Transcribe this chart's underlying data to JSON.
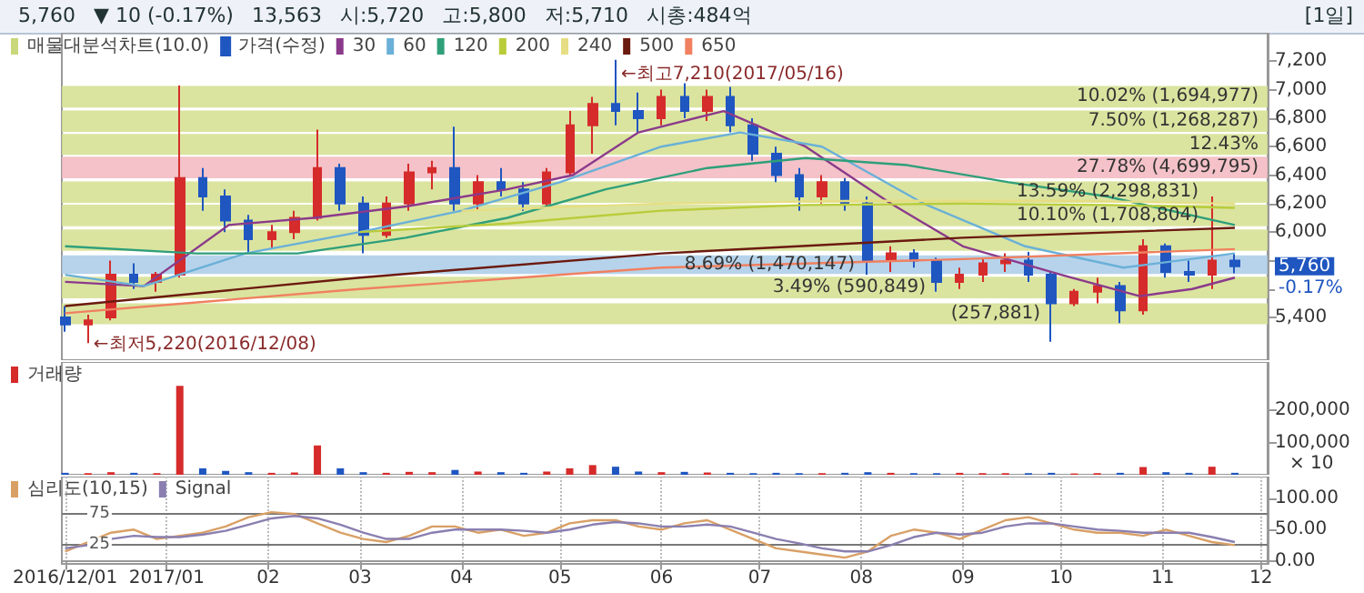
{
  "chart_data": [
    {
      "type": "candlestick",
      "legend_title": "매물대분석차트(10.0)",
      "legend": "top left",
      "tick_labels": "y",
      "annotations": [
        "5,760",
        "▼ 10 (-0.17%)",
        "13,563",
        "시:5,720",
        "고:5,800",
        "저:5,710",
        "시총:484억",
        "[1일]",
        {
          "text": "←최고7,210(2017/05/16)",
          "x": "2017-05-18",
          "y": 7210
        },
        {
          "text": "←최저5,220(2016/12/08)",
          "x": "2016-12-08",
          "y": 5220
        },
        {
          "text": "5,760",
          "x": "2017-11-23",
          "y": 5760
        },
        {
          "text": "-0.17%",
          "x": "2017-11-23",
          "y": 5760
        }
      ],
      "x": [
        "2016-12-01",
        "2016-12-08",
        "2016-12-15",
        "2016-12-22",
        "2016-12-29",
        "2017-01-05",
        "2017-01-12",
        "2017-01-19",
        "2017-01-26",
        "2017-02-02",
        "2017-02-09",
        "2017-02-16",
        "2017-02-23",
        "2017-03-02",
        "2017-03-09",
        "2017-03-16",
        "2017-03-23",
        "2017-03-30",
        "2017-04-06",
        "2017-04-13",
        "2017-04-20",
        "2017-04-27",
        "2017-05-04",
        "2017-05-11",
        "2017-05-18",
        "2017-05-25",
        "2017-06-01",
        "2017-06-08",
        "2017-06-15",
        "2017-06-22",
        "2017-06-29",
        "2017-07-06",
        "2017-07-13",
        "2017-07-20",
        "2017-07-27",
        "2017-08-03",
        "2017-08-10",
        "2017-08-17",
        "2017-08-24",
        "2017-08-31",
        "2017-09-07",
        "2017-09-14",
        "2017-09-21",
        "2017-09-28",
        "2017-10-05",
        "2017-10-12",
        "2017-10-19",
        "2017-10-26",
        "2017-11-02",
        "2017-11-09",
        "2017-11-16",
        "2017-11-23"
      ],
      "xlim": [
        "2016-11-30",
        "2017-12-03"
      ],
      "xticks": [
        {
          "value": "2016-12-01",
          "label": null
        },
        {
          "value": "2017-01-01",
          "label": null
        },
        {
          "value": "2017-02-01",
          "label": null
        },
        {
          "value": "2017-03-01",
          "label": null
        },
        {
          "value": "2017-04-01",
          "label": null
        },
        {
          "value": "2017-05-01",
          "label": null
        },
        {
          "value": "2017-06-01",
          "label": null
        },
        {
          "value": "2017-07-01",
          "label": null
        },
        {
          "value": "2017-08-01",
          "label": null
        },
        {
          "value": "2017-09-01",
          "label": null
        },
        {
          "value": "2017-10-01",
          "label": null
        },
        {
          "value": "2017-11-01",
          "label": null
        },
        {
          "value": "2017-12-01",
          "label": null
        }
      ],
      "ylim": [
        5100,
        7400
      ],
      "yticks": [
        {
          "value": 5400,
          "label": "5,400"
        },
        {
          "value": 5600,
          "label": null
        },
        {
          "value": 5800,
          "label": null
        },
        {
          "value": 6000,
          "label": "6,000"
        },
        {
          "value": 6200,
          "label": "6,200"
        },
        {
          "value": 6400,
          "label": "6,400"
        },
        {
          "value": 6600,
          "label": "6,600"
        },
        {
          "value": 6800,
          "label": "6,800"
        },
        {
          "value": 7000,
          "label": "7,000"
        },
        {
          "value": 7200,
          "label": "7,200"
        }
      ],
      "bands": [
        {
          "axis": "y",
          "from": 6875,
          "to": 7027,
          "label": "10.02% (1,694,977)",
          "color": "#d3df8e"
        },
        {
          "axis": "y",
          "from": 6703,
          "to": 6854,
          "label": "7.50% (1,268,287)",
          "color": "#d3df8e"
        },
        {
          "axis": "y",
          "from": 6543,
          "to": 6690,
          "label": "12.43%",
          "color": "#d3df8e"
        },
        {
          "axis": "y",
          "from": 6378,
          "to": 6530,
          "label": "27.78% (4,699,795)",
          "color": "#f2b7be"
        },
        {
          "axis": "y",
          "from": 6205,
          "to": 6356,
          "label": "13.59% (2,298,831)",
          "color": "#d3df8e"
        },
        {
          "axis": "y",
          "from": 6040,
          "to": 6192,
          "label": "10.10% (1,708,804)",
          "color": "#d3df8e"
        },
        {
          "axis": "y",
          "from": 5868,
          "to": 6018,
          "label": null,
          "color": "#d3df8e"
        },
        {
          "axis": "y",
          "from": 5706,
          "to": 5836,
          "label": "8.69% (1,470,147)",
          "color": "#a9cbe8"
        },
        {
          "axis": "y",
          "from": 5534,
          "to": 5686,
          "label": "3.49% (590,849)",
          "color": "#d3df8e"
        },
        {
          "axis": "y",
          "from": 5353,
          "to": 5499,
          "label": "(257,881)",
          "color": "#d3df8e"
        }
      ],
      "series": [
        {
          "name": "가격(수정)",
          "type": "candlestick",
          "colors": [
            "#1f56c0",
            "#d52b2b",
            "#d52b2b",
            "#1f56c0",
            "#d52b2b",
            "#d52b2b",
            "#1f56c0",
            "#1f56c0",
            "#1f56c0",
            "#d52b2b",
            "#d52b2b",
            "#d52b2b",
            "#1f56c0",
            "#1f56c0",
            "#d52b2b",
            "#d52b2b",
            "#d52b2b",
            "#1f56c0",
            "#d52b2b",
            "#1f56c0",
            "#1f56c0",
            "#d52b2b",
            "#d52b2b",
            "#d52b2b",
            "#1f56c0",
            "#1f56c0",
            "#d52b2b",
            "#1f56c0",
            "#d52b2b",
            "#1f56c0",
            "#1f56c0",
            "#1f56c0",
            "#1f56c0",
            "#d52b2b",
            "#1f56c0",
            "#1f56c0",
            "#d52b2b",
            "#1f56c0",
            "#1f56c0",
            "#d52b2b",
            "#d52b2b",
            "#d52b2b",
            "#1f56c0",
            "#1f56c0",
            "#d52b2b",
            "#d52b2b",
            "#1f56c0",
            "#d52b2b",
            "#1f56c0",
            "#1f56c0",
            "#d52b2b",
            "#1f56c0"
          ],
          "ohlc": [
            [
              5400,
              5480,
              5300,
              5350
            ],
            [
              5350,
              5420,
              5220,
              5380
            ],
            [
              5400,
              5800,
              5380,
              5700
            ],
            [
              5700,
              5780,
              5600,
              5650
            ],
            [
              5650,
              5720,
              5580,
              5700
            ],
            [
              5700,
              7030,
              5680,
              6380
            ],
            [
              6380,
              6450,
              6150,
              6250
            ],
            [
              6250,
              6300,
              6000,
              6080
            ],
            [
              6080,
              6120,
              5850,
              5950
            ],
            [
              5950,
              6050,
              5880,
              6000
            ],
            [
              6000,
              6150,
              5950,
              6100
            ],
            [
              6100,
              6720,
              6080,
              6450
            ],
            [
              6450,
              6480,
              6150,
              6200
            ],
            [
              6200,
              6250,
              5850,
              5980
            ],
            [
              5980,
              6250,
              5960,
              6200
            ],
            [
              6200,
              6480,
              6150,
              6420
            ],
            [
              6420,
              6500,
              6300,
              6450
            ],
            [
              6450,
              6740,
              6150,
              6200
            ],
            [
              6200,
              6400,
              6150,
              6350
            ],
            [
              6350,
              6450,
              6250,
              6300
            ],
            [
              6300,
              6350,
              6150,
              6200
            ],
            [
              6200,
              6450,
              6180,
              6420
            ],
            [
              6420,
              6850,
              6400,
              6750
            ],
            [
              6750,
              6950,
              6550,
              6900
            ],
            [
              6900,
              7210,
              6750,
              6850
            ],
            [
              6850,
              6980,
              6700,
              6800
            ],
            [
              6800,
              7000,
              6750,
              6950
            ],
            [
              6950,
              7050,
              6800,
              6850
            ],
            [
              6850,
              7000,
              6780,
              6950
            ],
            [
              6950,
              7020,
              6700,
              6750
            ],
            [
              6750,
              6800,
              6500,
              6550
            ],
            [
              6550,
              6600,
              6350,
              6400
            ],
            [
              6400,
              6450,
              6150,
              6250
            ],
            [
              6250,
              6400,
              6200,
              6350
            ],
            [
              6350,
              6380,
              6150,
              6200
            ],
            [
              6200,
              6250,
              5700,
              5800
            ],
            [
              5800,
              5900,
              5720,
              5850
            ],
            [
              5850,
              5880,
              5750,
              5800
            ],
            [
              5800,
              5820,
              5580,
              5650
            ],
            [
              5650,
              5750,
              5600,
              5700
            ],
            [
              5700,
              5820,
              5650,
              5780
            ],
            [
              5780,
              5850,
              5720,
              5800
            ],
            [
              5800,
              5860,
              5650,
              5700
            ],
            [
              5700,
              5720,
              5230,
              5500
            ],
            [
              5500,
              5600,
              5480,
              5580
            ],
            [
              5580,
              5680,
              5500,
              5620
            ],
            [
              5620,
              5650,
              5360,
              5450
            ],
            [
              5450,
              5950,
              5420,
              5900
            ],
            [
              5900,
              5920,
              5680,
              5720
            ],
            [
              5720,
              5800,
              5650,
              5700
            ],
            [
              5700,
              6250,
              5600,
              5800
            ],
            [
              5800,
              5850,
              5710,
              5760
            ]
          ]
        },
        {
          "name": "30",
          "type": "line",
          "color": "#8b3a8b",
          "x": [
            "2016-12-01",
            "2016-12-25",
            "2017-01-20",
            "2017-02-15",
            "2017-03-15",
            "2017-04-15",
            "2017-05-05",
            "2017-05-25",
            "2017-06-20",
            "2017-07-15",
            "2017-08-10",
            "2017-09-01",
            "2017-10-01",
            "2017-10-25",
            "2017-11-10",
            "2017-11-23"
          ],
          "values": [
            5650,
            5620,
            6050,
            6100,
            6180,
            6300,
            6400,
            6700,
            6850,
            6600,
            6200,
            5900,
            5700,
            5550,
            5600,
            5680
          ]
        },
        {
          "name": "60",
          "type": "line",
          "color": "#6ab0d8",
          "x": [
            "2016-12-01",
            "2016-12-25",
            "2017-01-25",
            "2017-03-01",
            "2017-04-01",
            "2017-05-01",
            "2017-06-01",
            "2017-06-25",
            "2017-07-20",
            "2017-08-20",
            "2017-09-20",
            "2017-10-20",
            "2017-11-23"
          ],
          "values": [
            5700,
            5620,
            5850,
            6000,
            6150,
            6350,
            6600,
            6700,
            6600,
            6200,
            5900,
            5750,
            5850
          ]
        },
        {
          "name": "120",
          "type": "line",
          "color": "#2f9f7a",
          "x": [
            "2016-12-01",
            "2017-01-10",
            "2017-02-10",
            "2017-03-15",
            "2017-04-15",
            "2017-05-15",
            "2017-06-15",
            "2017-07-15",
            "2017-08-15",
            "2017-09-15",
            "2017-10-15",
            "2017-11-23"
          ],
          "values": [
            5900,
            5850,
            5850,
            5960,
            6100,
            6300,
            6450,
            6520,
            6470,
            6350,
            6250,
            6050
          ]
        },
        {
          "name": "200",
          "type": "line",
          "color": "#b9cc3a",
          "x": [
            "2017-03-01",
            "2017-04-15",
            "2017-06-01",
            "2017-07-15",
            "2017-09-01",
            "2017-10-15",
            "2017-11-23"
          ],
          "values": [
            6000,
            6060,
            6150,
            6190,
            6200,
            6190,
            6170
          ]
        },
        {
          "name": "240",
          "type": "line",
          "color": "#e6de84",
          "x": [
            "2017-04-01",
            "2017-06-01",
            "2017-08-01",
            "2017-10-01",
            "2017-11-23"
          ],
          "values": [
            6150,
            6200,
            6220,
            6220,
            6200
          ]
        },
        {
          "name": "500",
          "type": "line",
          "color": "#6b1a0f",
          "x": [
            "2016-12-01",
            "2017-03-01",
            "2017-06-01",
            "2017-09-01",
            "2017-11-23"
          ],
          "values": [
            5480,
            5680,
            5850,
            5960,
            6030
          ]
        },
        {
          "name": "650",
          "type": "line",
          "color": "#f08060",
          "x": [
            "2016-12-01",
            "2017-03-01",
            "2017-06-01",
            "2017-09-01",
            "2017-11-23"
          ],
          "values": [
            5430,
            5600,
            5750,
            5810,
            5880
          ]
        }
      ]
    },
    {
      "type": "bar",
      "legend": "top left",
      "tick_labels": "y",
      "x": [
        "2016-12-01",
        "2016-12-08",
        "2016-12-15",
        "2016-12-22",
        "2016-12-29",
        "2017-01-05",
        "2017-01-12",
        "2017-01-19",
        "2017-01-26",
        "2017-02-02",
        "2017-02-09",
        "2017-02-16",
        "2017-02-23",
        "2017-03-02",
        "2017-03-09",
        "2017-03-16",
        "2017-03-23",
        "2017-03-30",
        "2017-04-06",
        "2017-04-13",
        "2017-04-20",
        "2017-04-27",
        "2017-05-04",
        "2017-05-11",
        "2017-05-18",
        "2017-05-25",
        "2017-06-01",
        "2017-06-08",
        "2017-06-15",
        "2017-06-22",
        "2017-06-29",
        "2017-07-06",
        "2017-07-13",
        "2017-07-20",
        "2017-07-27",
        "2017-08-03",
        "2017-08-10",
        "2017-08-17",
        "2017-08-24",
        "2017-08-31",
        "2017-09-07",
        "2017-09-14",
        "2017-09-21",
        "2017-09-28",
        "2017-10-05",
        "2017-10-12",
        "2017-10-19",
        "2017-10-26",
        "2017-11-02",
        "2017-11-09",
        "2017-11-16",
        "2017-11-23"
      ],
      "xlim": [
        "2016-11-30",
        "2017-12-03"
      ],
      "xticks": [
        {
          "value": "2016-12-01",
          "label": null
        },
        {
          "value": "2017-01-01",
          "label": null
        },
        {
          "value": "2017-02-01",
          "label": null
        },
        {
          "value": "2017-03-01",
          "label": null
        },
        {
          "value": "2017-04-01",
          "label": null
        },
        {
          "value": "2017-05-01",
          "label": null
        },
        {
          "value": "2017-06-01",
          "label": null
        },
        {
          "value": "2017-07-01",
          "label": null
        },
        {
          "value": "2017-08-01",
          "label": null
        },
        {
          "value": "2017-09-01",
          "label": null
        },
        {
          "value": "2017-10-01",
          "label": null
        },
        {
          "value": "2017-11-01",
          "label": null
        },
        {
          "value": "2017-12-01",
          "label": null
        }
      ],
      "ylim": [
        0,
        350000
      ],
      "ylabel": "× 10",
      "yticks": [
        {
          "value": 100000,
          "label": "100,000"
        },
        {
          "value": 200000,
          "label": "200,000"
        }
      ],
      "series": [
        {
          "name": "거래량",
          "color": "#d52b2b",
          "values": [
            6000,
            5000,
            8000,
            6000,
            5000,
            276000,
            20000,
            12000,
            8000,
            6000,
            7000,
            91000,
            20000,
            8000,
            6000,
            9000,
            8000,
            15000,
            10000,
            8000,
            6000,
            10000,
            20000,
            30000,
            25000,
            10000,
            8000,
            9000,
            7000,
            6000,
            5000,
            6000,
            5000,
            5000,
            6000,
            8000,
            6000,
            5000,
            5000,
            6000,
            5000,
            5000,
            5000,
            6000,
            4000,
            5000,
            6000,
            24000,
            8000,
            6000,
            25000,
            6000
          ],
          "colors": [
            "#1f56c0",
            "#d52b2b",
            "#d52b2b",
            "#1f56c0",
            "#d52b2b",
            "#d52b2b",
            "#1f56c0",
            "#1f56c0",
            "#1f56c0",
            "#d52b2b",
            "#d52b2b",
            "#d52b2b",
            "#1f56c0",
            "#1f56c0",
            "#d52b2b",
            "#d52b2b",
            "#d52b2b",
            "#1f56c0",
            "#d52b2b",
            "#1f56c0",
            "#1f56c0",
            "#d52b2b",
            "#d52b2b",
            "#d52b2b",
            "#1f56c0",
            "#1f56c0",
            "#d52b2b",
            "#1f56c0",
            "#d52b2b",
            "#1f56c0",
            "#1f56c0",
            "#1f56c0",
            "#1f56c0",
            "#d52b2b",
            "#1f56c0",
            "#1f56c0",
            "#d52b2b",
            "#1f56c0",
            "#1f56c0",
            "#d52b2b",
            "#d52b2b",
            "#d52b2b",
            "#1f56c0",
            "#1f56c0",
            "#d52b2b",
            "#d52b2b",
            "#1f56c0",
            "#d52b2b",
            "#1f56c0",
            "#1f56c0",
            "#d52b2b",
            "#1f56c0"
          ]
        }
      ]
    },
    {
      "type": "line",
      "legend": "top left",
      "grid": "x",
      "x": [
        "2016-12-01",
        "2016-12-08",
        "2016-12-15",
        "2016-12-22",
        "2016-12-29",
        "2017-01-05",
        "2017-01-12",
        "2017-01-19",
        "2017-01-26",
        "2017-02-02",
        "2017-02-09",
        "2017-02-16",
        "2017-02-23",
        "2017-03-02",
        "2017-03-09",
        "2017-03-16",
        "2017-03-23",
        "2017-03-30",
        "2017-04-06",
        "2017-04-13",
        "2017-04-20",
        "2017-04-27",
        "2017-05-04",
        "2017-05-11",
        "2017-05-18",
        "2017-05-25",
        "2017-06-01",
        "2017-06-08",
        "2017-06-15",
        "2017-06-22",
        "2017-06-29",
        "2017-07-06",
        "2017-07-13",
        "2017-07-20",
        "2017-07-27",
        "2017-08-03",
        "2017-08-10",
        "2017-08-17",
        "2017-08-24",
        "2017-08-31",
        "2017-09-07",
        "2017-09-14",
        "2017-09-21",
        "2017-09-28",
        "2017-10-05",
        "2017-10-12",
        "2017-10-19",
        "2017-10-26",
        "2017-11-02",
        "2017-11-09",
        "2017-11-16",
        "2017-11-23"
      ],
      "xlim": [
        "2016-11-30",
        "2017-12-03"
      ],
      "xticks": [
        {
          "value": "2016-12-01",
          "label": "2016/12/01"
        },
        {
          "value": "2017-01-01",
          "label": "2017/01"
        },
        {
          "value": "2017-02-01",
          "label": "02"
        },
        {
          "value": "2017-03-01",
          "label": "03"
        },
        {
          "value": "2017-04-01",
          "label": "04"
        },
        {
          "value": "2017-05-01",
          "label": "05"
        },
        {
          "value": "2017-06-01",
          "label": "06"
        },
        {
          "value": "2017-07-01",
          "label": "07"
        },
        {
          "value": "2017-08-01",
          "label": "08"
        },
        {
          "value": "2017-09-01",
          "label": "09"
        },
        {
          "value": "2017-10-01",
          "label": "10"
        },
        {
          "value": "2017-11-01",
          "label": "11"
        },
        {
          "value": "2017-12-01",
          "label": "12"
        }
      ],
      "ylim": [
        -5,
        135
      ],
      "yticks": [
        {
          "value": 0,
          "label": "0.00"
        },
        {
          "value": 50,
          "label": "50.00"
        },
        {
          "value": 100,
          "label": "100.00"
        }
      ],
      "ref_lines": [
        {
          "axis": "y",
          "value": 75,
          "label": "75",
          "color": "#777777"
        },
        {
          "axis": "y",
          "value": 25,
          "label": "25",
          "color": "#777777"
        }
      ],
      "series": [
        {
          "name": "심리도(10,15)",
          "color": "#d9a066",
          "values": [
            15,
            30,
            45,
            50,
            35,
            40,
            45,
            55,
            70,
            78,
            75,
            60,
            45,
            35,
            30,
            40,
            55,
            55,
            45,
            50,
            40,
            45,
            60,
            65,
            65,
            55,
            50,
            60,
            65,
            50,
            35,
            20,
            15,
            10,
            5,
            15,
            40,
            50,
            45,
            35,
            50,
            65,
            70,
            60,
            50,
            45,
            45,
            40,
            50,
            40,
            30,
            25
          ]
        },
        {
          "name": "Signal",
          "color": "#8a7fb0",
          "values": [
            20,
            25,
            35,
            40,
            38,
            38,
            42,
            48,
            58,
            68,
            72,
            68,
            58,
            45,
            35,
            35,
            45,
            50,
            50,
            50,
            48,
            45,
            50,
            58,
            62,
            60,
            55,
            55,
            58,
            55,
            45,
            35,
            28,
            20,
            15,
            15,
            25,
            38,
            45,
            42,
            45,
            55,
            60,
            60,
            55,
            50,
            48,
            45,
            45,
            45,
            38,
            30
          ]
        }
      ]
    }
  ]
}
